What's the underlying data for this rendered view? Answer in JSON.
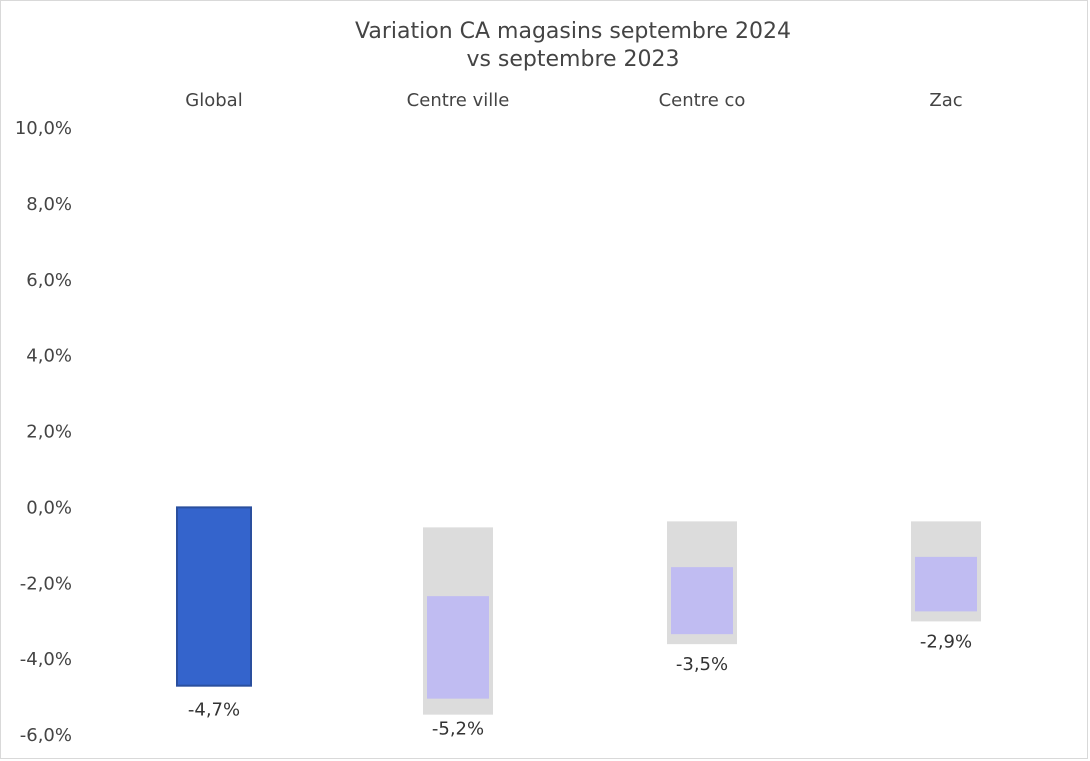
{
  "chart_data": {
    "type": "bar",
    "title_line1": "Variation CA magasins septembre 2024",
    "title_line2": "vs septembre 2023",
    "categories": [
      "Global",
      "Centre ville",
      "Centre co",
      "Zac"
    ],
    "values": [
      -4.7,
      -5.2,
      -3.5,
      -2.9
    ],
    "data_labels": [
      "-4,7%",
      "-5,2%",
      "-3,5%",
      "-2,9%"
    ],
    "ylim": [
      -6.0,
      10.0
    ],
    "y_ticks": [
      {
        "value": 10,
        "label": "10,0%"
      },
      {
        "value": 8,
        "label": "8,0%"
      },
      {
        "value": 6,
        "label": "6,0%"
      },
      {
        "value": 4,
        "label": "4,0%"
      },
      {
        "value": 2,
        "label": "2,0%"
      },
      {
        "value": 0,
        "label": "0,0%"
      },
      {
        "value": -2,
        "label": "-2,0%"
      },
      {
        "value": -4,
        "label": "-4,0%"
      },
      {
        "value": -6,
        "label": "-6,0%"
      }
    ],
    "category_labels_position": "top",
    "grid": false,
    "legend": "none",
    "colors": {
      "highlight": "#3464cc",
      "highlight_edge": "#2a4f9e",
      "faded": "#c0bcf2",
      "faded_shadow": "#dcdcdc"
    }
  }
}
